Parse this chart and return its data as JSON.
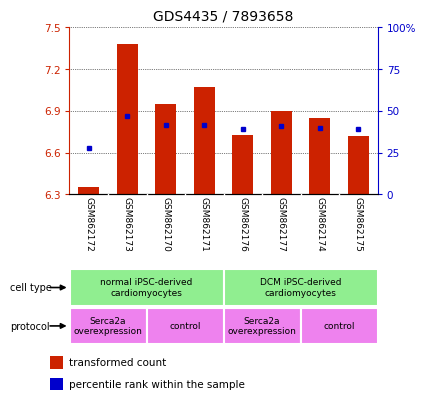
{
  "title": "GDS4435 / 7893658",
  "samples": [
    "GSM862172",
    "GSM862173",
    "GSM862170",
    "GSM862171",
    "GSM862176",
    "GSM862177",
    "GSM862174",
    "GSM862175"
  ],
  "red_values": [
    6.35,
    7.38,
    6.95,
    7.07,
    6.73,
    6.9,
    6.85,
    6.72
  ],
  "blue_values": [
    6.63,
    6.86,
    6.8,
    6.8,
    6.77,
    6.79,
    6.78,
    6.77
  ],
  "ylim_left": [
    6.3,
    7.5
  ],
  "ylim_right": [
    0,
    100
  ],
  "yticks_left": [
    6.3,
    6.6,
    6.9,
    7.2,
    7.5
  ],
  "yticks_right": [
    0,
    25,
    50,
    75,
    100
  ],
  "ytick_labels_left": [
    "6.3",
    "6.6",
    "6.9",
    "7.2",
    "7.5"
  ],
  "ytick_labels_right": [
    "0",
    "25",
    "50",
    "75",
    "100%"
  ],
  "cell_type_groups": [
    {
      "label": "normal iPSC-derived\ncardiomyocytes",
      "start": 0,
      "end": 3,
      "color": "#90EE90"
    },
    {
      "label": "DCM iPSC-derived\ncardiomyocytes",
      "start": 4,
      "end": 7,
      "color": "#90EE90"
    }
  ],
  "protocol_groups": [
    {
      "label": "Serca2a\noverexpression",
      "start": 0,
      "end": 1,
      "color": "#EE82EE"
    },
    {
      "label": "control",
      "start": 2,
      "end": 3,
      "color": "#EE82EE"
    },
    {
      "label": "Serca2a\noverexpression",
      "start": 4,
      "end": 5,
      "color": "#EE82EE"
    },
    {
      "label": "control",
      "start": 6,
      "end": 7,
      "color": "#EE82EE"
    }
  ],
  "bar_color": "#CC2200",
  "blue_color": "#0000CC",
  "grid_color": "black",
  "label_bg": "#C8C8C8",
  "title_fontsize": 10,
  "tick_fontsize": 7.5,
  "legend_fontsize": 7.5
}
